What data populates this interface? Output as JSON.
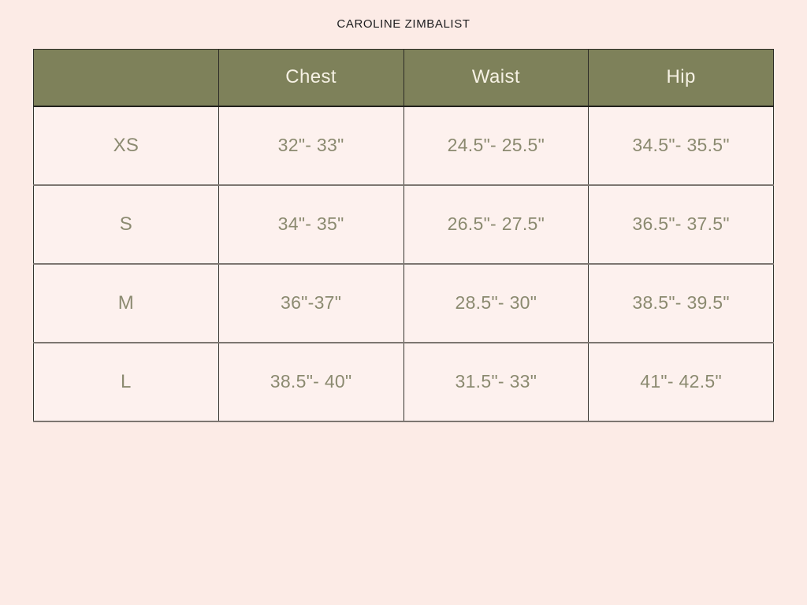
{
  "brand": {
    "title": "CAROLINE ZIMBALIST"
  },
  "colors": {
    "page_background": "#fcebe6",
    "cell_background": "#fdf1ee",
    "header_background": "#7e815a",
    "header_text": "#f6f1e4",
    "data_text": "#8b8a70",
    "title_text": "#1d1d1f"
  },
  "size_chart": {
    "columns": [
      "",
      "Chest",
      "Waist",
      "Hip"
    ],
    "rows": [
      {
        "size": "XS",
        "chest": "32\"- 33\"",
        "waist": "24.5\"- 25.5\"",
        "hip": "34.5\"- 35.5\""
      },
      {
        "size": "S",
        "chest": "34\"- 35\"",
        "waist": "26.5\"- 27.5\"",
        "hip": "36.5\"- 37.5\""
      },
      {
        "size": "M",
        "chest": "36\"-37\"",
        "waist": "28.5\"- 30\"",
        "hip": "38.5\"- 39.5\""
      },
      {
        "size": "L",
        "chest": "38.5\"- 40\"",
        "waist": "31.5\"- 33\"",
        "hip": "41\"- 42.5\""
      }
    ]
  }
}
